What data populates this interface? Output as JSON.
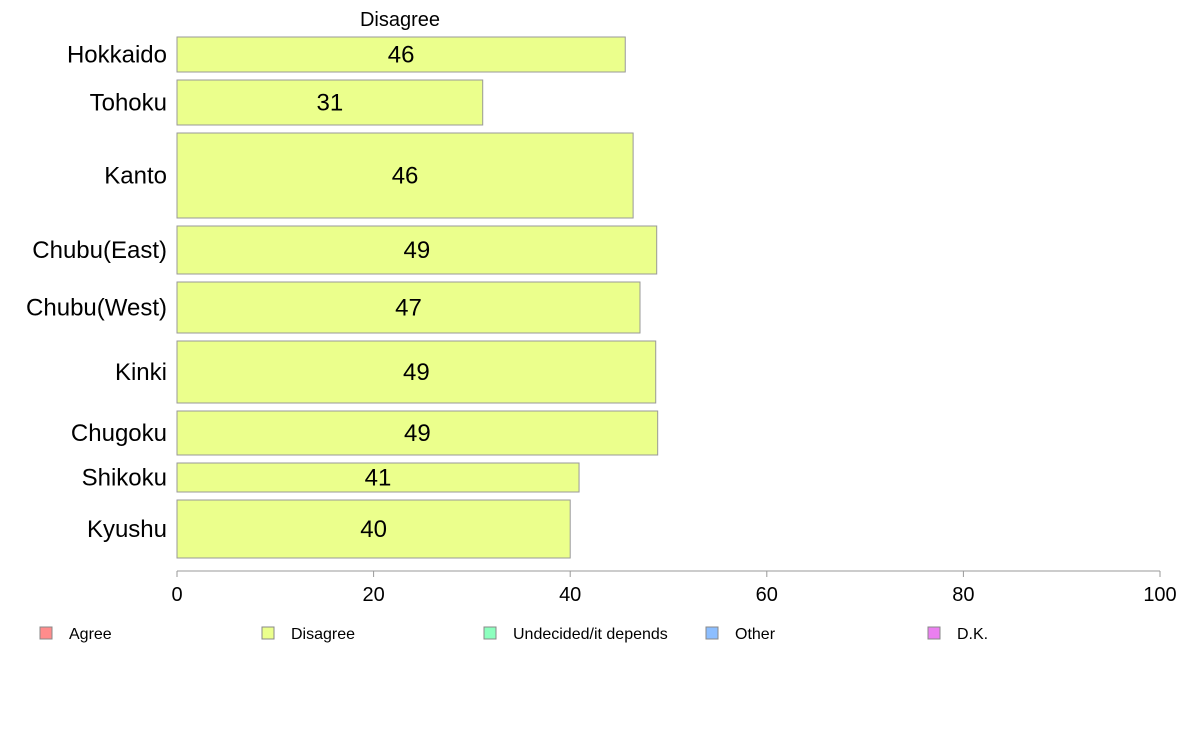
{
  "chart_data": {
    "type": "bar",
    "orientation": "horizontal",
    "title": "Disagree",
    "categories": [
      "Hokkaido",
      "Tohoku",
      "Kanto",
      "Chubu(East)",
      "Chubu(West)",
      "Kinki",
      "Chugoku",
      "Shikoku",
      "Kyushu"
    ],
    "values": [
      45.6,
      31.1,
      46.4,
      48.8,
      47.1,
      48.7,
      48.9,
      40.9,
      40.0
    ],
    "value_labels": [
      "46",
      "31",
      "46",
      "49",
      "47",
      "49",
      "49",
      "41",
      "40"
    ],
    "xlim": [
      0,
      100
    ],
    "xticks": [
      "0",
      "20",
      "40",
      "60",
      "80",
      "100"
    ],
    "xlabel": "",
    "ylabel": "",
    "bar_color": "#ebff8c",
    "grid": false,
    "legend": {
      "placement": "bottom",
      "entries": [
        {
          "label": "Agree",
          "color": "#ff8c8c"
        },
        {
          "label": "Disagree",
          "color": "#ebff8c"
        },
        {
          "label": "Undecided/it depends",
          "color": "#8cffbe"
        },
        {
          "label": "Other",
          "color": "#8cbeff"
        },
        {
          "label": "D.K.",
          "color": "#eb7ff0"
        }
      ]
    }
  }
}
